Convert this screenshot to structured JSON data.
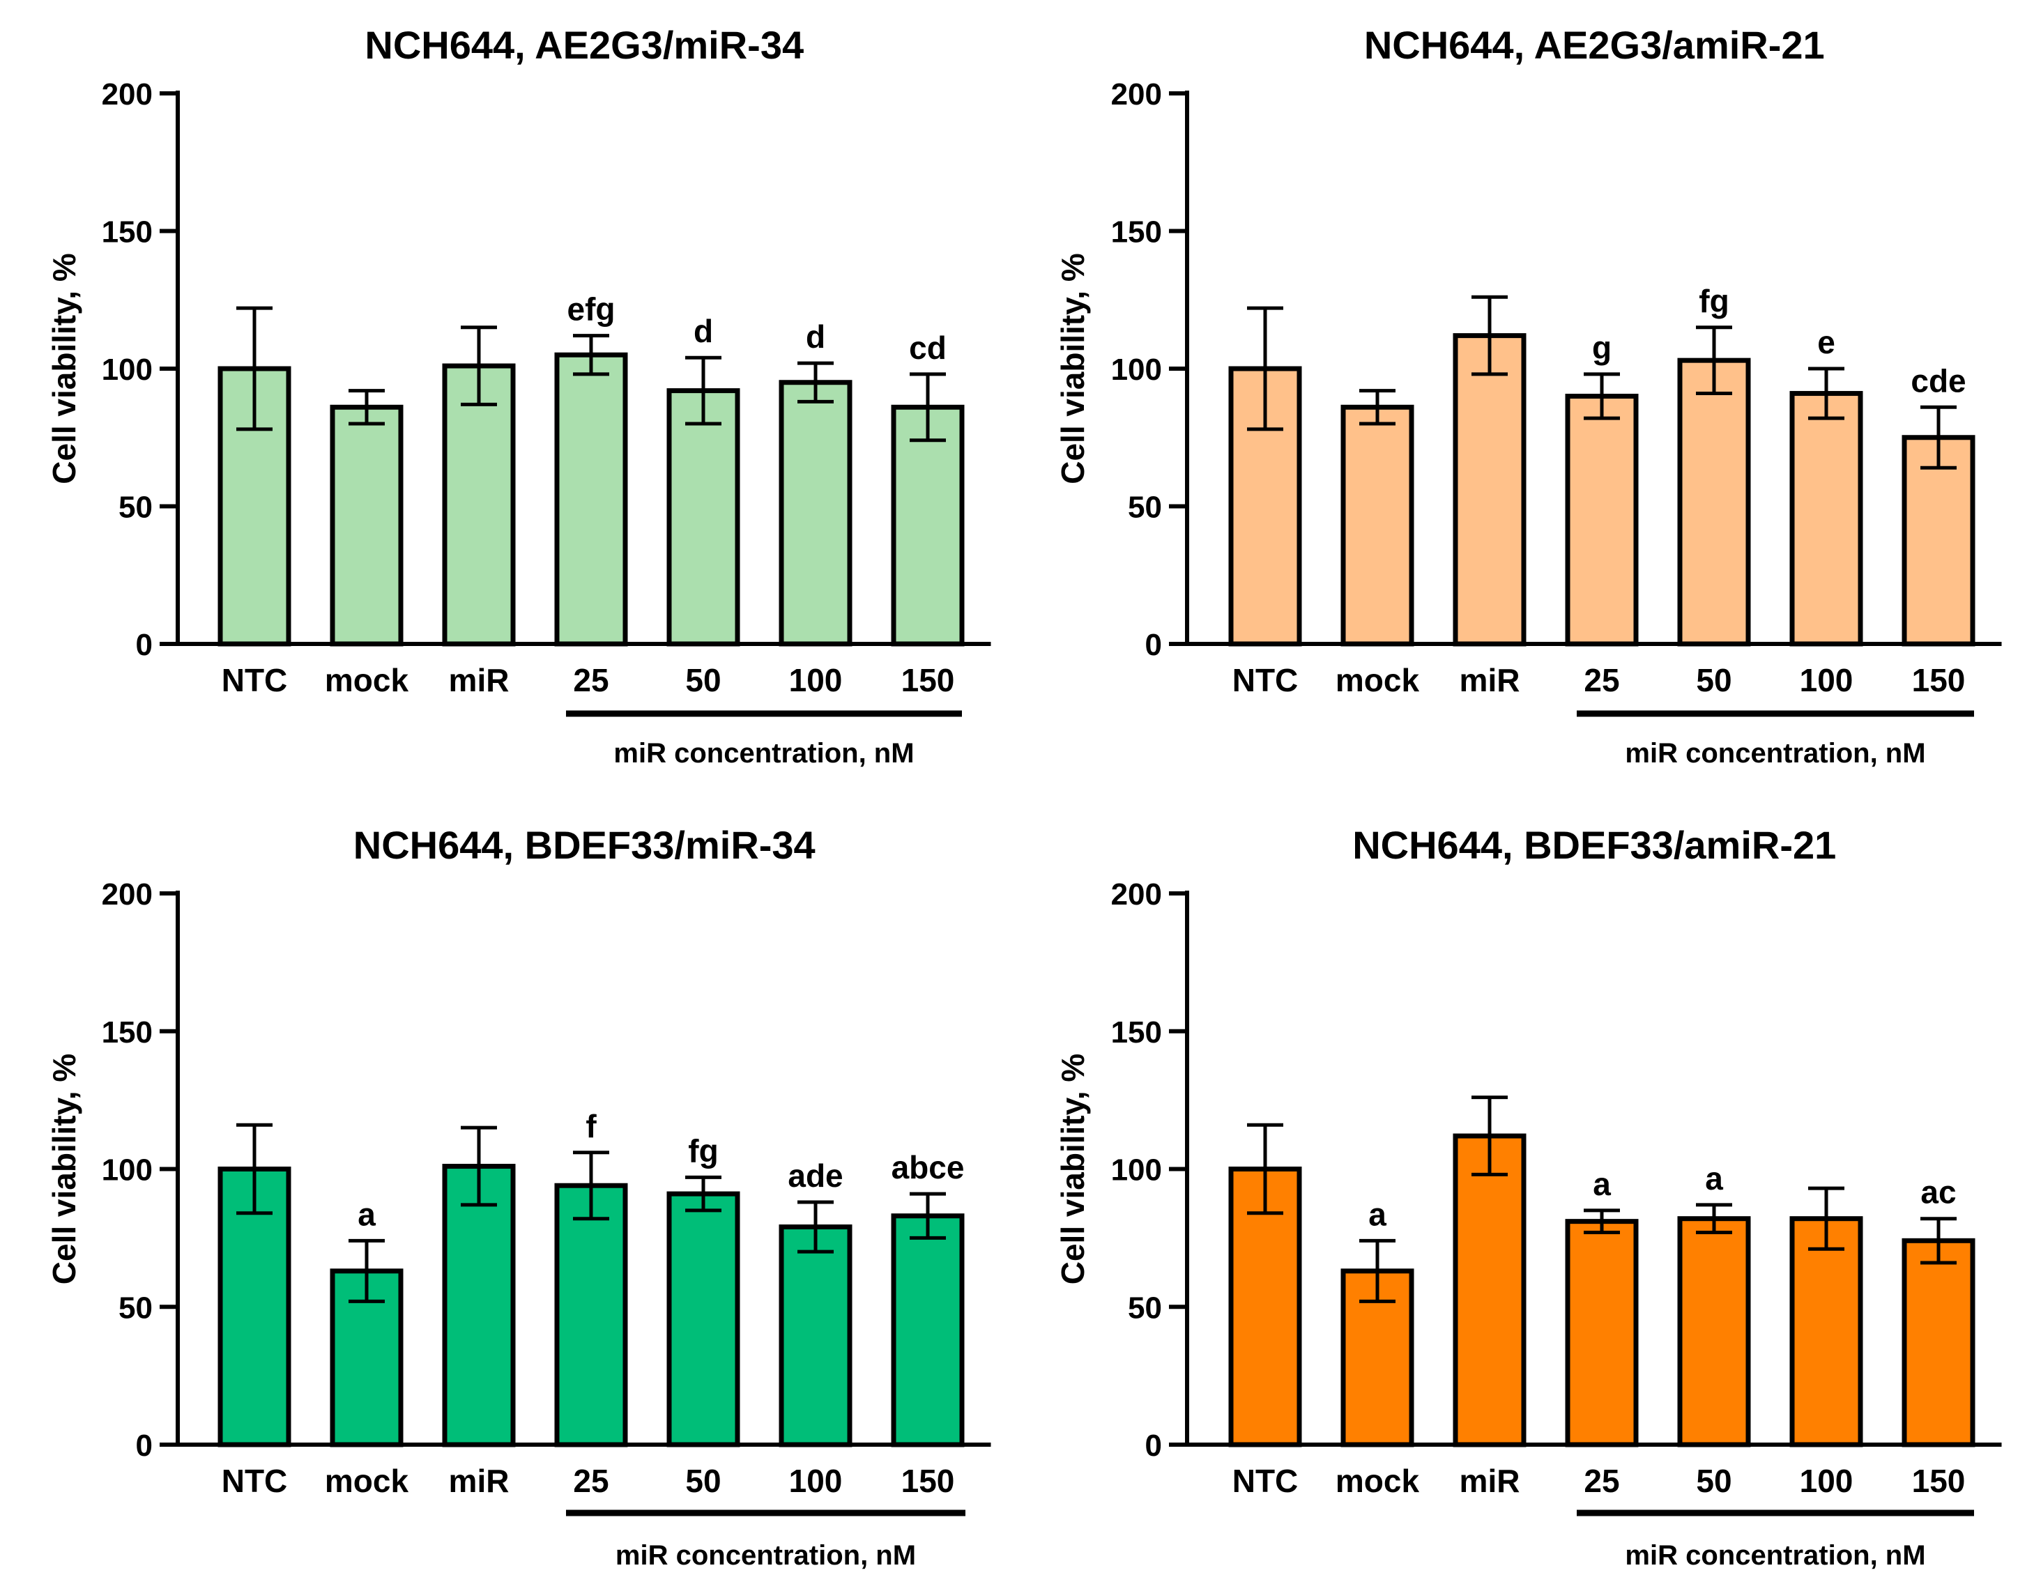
{
  "chart_data": [
    {
      "type": "bar",
      "title": "NCH644, AE2G3/miR-34",
      "ylabel": "Cell viability, %",
      "xlabel": "",
      "ylim": [
        0,
        200
      ],
      "yticks": [
        0,
        50,
        100,
        150,
        200
      ],
      "grid": false,
      "categories": [
        "NTC",
        "mock",
        "miR",
        "25",
        "50",
        "100",
        "150"
      ],
      "values": [
        100,
        86,
        101,
        105,
        92,
        95,
        86
      ],
      "errors": [
        22,
        6,
        14,
        7,
        12,
        7,
        12
      ],
      "annotations": [
        "",
        "",
        "",
        "efg",
        "d",
        "d",
        "cd"
      ],
      "group_label": "miR concentration, nM",
      "color": "#abdfae"
    },
    {
      "type": "bar",
      "title": "NCH644, AE2G3/amiR-21",
      "ylabel": "Cell viability, %",
      "xlabel": "",
      "ylim": [
        0,
        200
      ],
      "yticks": [
        0,
        50,
        100,
        150,
        200
      ],
      "grid": false,
      "categories": [
        "NTC",
        "mock",
        "miR",
        "25",
        "50",
        "100",
        "150"
      ],
      "values": [
        100,
        86,
        112,
        90,
        103,
        91,
        75
      ],
      "errors": [
        22,
        6,
        14,
        8,
        12,
        9,
        11
      ],
      "annotations": [
        "",
        "",
        "",
        "g",
        "fg",
        "e",
        "cde"
      ],
      "group_label": "miR concentration, nM",
      "color": "#ffc18a"
    },
    {
      "type": "bar",
      "title": "NCH644, BDEF33/miR-34",
      "ylabel": "Cell viability, %",
      "xlabel": "",
      "ylim": [
        0,
        200
      ],
      "yticks": [
        0,
        50,
        100,
        150,
        200
      ],
      "grid": false,
      "categories": [
        "NTC",
        "mock",
        "miR",
        "25",
        "50",
        "100",
        "150"
      ],
      "values": [
        100,
        63,
        101,
        94,
        91,
        79,
        83
      ],
      "errors": [
        16,
        11,
        14,
        12,
        6,
        9,
        8
      ],
      "annotations": [
        "",
        "a",
        "",
        "f",
        "fg",
        "ade",
        "abce"
      ],
      "group_label": "miR concentration, nM",
      "color": "#00be78"
    },
    {
      "type": "bar",
      "title": "NCH644, BDEF33/amiR-21",
      "ylabel": "Cell viability, %",
      "xlabel": "",
      "ylim": [
        0,
        200
      ],
      "yticks": [
        0,
        50,
        100,
        150,
        200
      ],
      "grid": false,
      "categories": [
        "NTC",
        "mock",
        "miR",
        "25",
        "50",
        "100",
        "150"
      ],
      "values": [
        100,
        63,
        112,
        81,
        82,
        82,
        74
      ],
      "errors": [
        16,
        11,
        14,
        4,
        5,
        11,
        8
      ],
      "annotations": [
        "",
        "a",
        "",
        "a",
        "a",
        "",
        "ac"
      ],
      "group_label": "miR concentration, nM",
      "color": "#ff8000"
    }
  ]
}
